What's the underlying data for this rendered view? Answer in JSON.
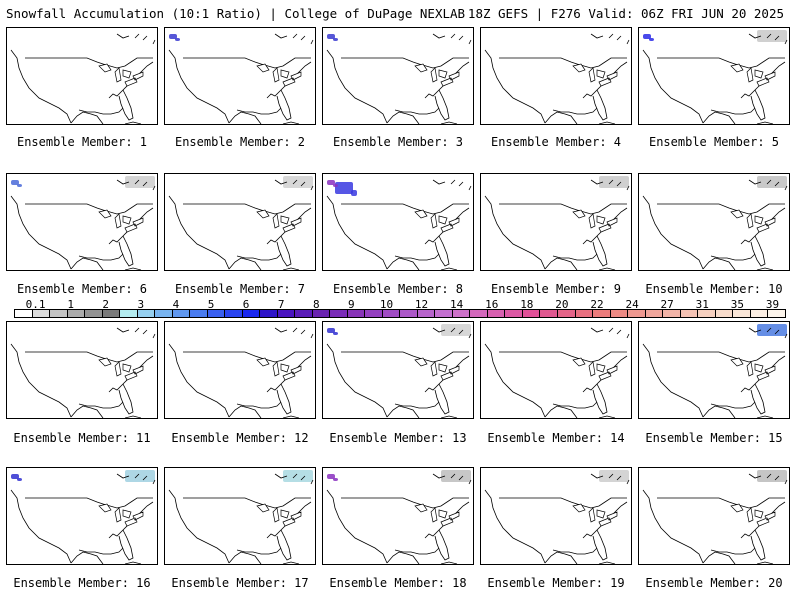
{
  "header": {
    "left": "Snowfall Accumulation (10:1 Ratio) | College of DuPage NEXLAB",
    "right": "18Z GEFS | F276 Valid: 06Z FRI JUN 20 2025"
  },
  "panels": [
    {
      "label": "Ensemble Member: 1",
      "snow": []
    },
    {
      "label": "Ensemble Member: 2",
      "snow": [
        {
          "region": "pacific-northwest",
          "color": "#3a3ad0"
        }
      ]
    },
    {
      "label": "Ensemble Member: 3",
      "snow": [
        {
          "region": "pacific-northwest",
          "color": "#3a3ad0"
        }
      ]
    },
    {
      "label": "Ensemble Member: 4",
      "snow": []
    },
    {
      "label": "Ensemble Member: 5",
      "snow": [
        {
          "region": "pacific-northwest",
          "color": "#2a2ae8"
        },
        {
          "region": "northeast-canada",
          "color": "#c8c8c8"
        }
      ]
    },
    {
      "label": "Ensemble Member: 6",
      "snow": [
        {
          "region": "pacific-northwest",
          "color": "#4a6ad8"
        },
        {
          "region": "northeast-canada",
          "color": "#cccccc"
        }
      ]
    },
    {
      "label": "Ensemble Member: 7",
      "snow": [
        {
          "region": "northeast-canada",
          "color": "#d0d0d0"
        }
      ]
    },
    {
      "label": "Ensemble Member: 8",
      "snow": [
        {
          "region": "northern-rockies",
          "color": "#3838e0"
        },
        {
          "region": "pacific-northwest",
          "color": "#8a30c0"
        }
      ]
    },
    {
      "label": "Ensemble Member: 9",
      "snow": [
        {
          "region": "northeast-canada",
          "color": "#c8c8c8"
        }
      ]
    },
    {
      "label": "Ensemble Member: 10",
      "snow": [
        {
          "region": "northeast-canada",
          "color": "#c0c0c0"
        }
      ]
    },
    {
      "label": "Ensemble Member: 11",
      "snow": []
    },
    {
      "label": "Ensemble Member: 12",
      "snow": []
    },
    {
      "label": "Ensemble Member: 13",
      "snow": [
        {
          "region": "pacific-northwest",
          "color": "#3030d0"
        },
        {
          "region": "northeast-canada",
          "color": "#d0d0d0"
        }
      ]
    },
    {
      "label": "Ensemble Member: 14",
      "snow": []
    },
    {
      "label": "Ensemble Member: 15",
      "snow": [
        {
          "region": "northeast-canada",
          "color": "#4a7ae0"
        }
      ]
    },
    {
      "label": "Ensemble Member: 16",
      "snow": [
        {
          "region": "pacific-northwest",
          "color": "#3030d0"
        },
        {
          "region": "northeast-canada",
          "color": "#a0d0e0"
        }
      ]
    },
    {
      "label": "Ensemble Member: 17",
      "snow": [
        {
          "region": "northeast-canada",
          "color": "#a8d8e0"
        }
      ]
    },
    {
      "label": "Ensemble Member: 18",
      "snow": [
        {
          "region": "pacific-northwest",
          "color": "#8a30c0"
        },
        {
          "region": "northeast-canada",
          "color": "#bdbdbd"
        }
      ]
    },
    {
      "label": "Ensemble Member: 19",
      "snow": [
        {
          "region": "northeast-canada",
          "color": "#cccccc"
        }
      ]
    },
    {
      "label": "Ensemble Member: 20",
      "snow": [
        {
          "region": "northeast-canada",
          "color": "#bbbbbb"
        }
      ]
    }
  ],
  "colorbar": {
    "labels": [
      "0.1",
      "1",
      "2",
      "3",
      "4",
      "5",
      "6",
      "7",
      "8",
      "9",
      "10",
      "12",
      "14",
      "16",
      "18",
      "20",
      "22",
      "24",
      "27",
      "31",
      "35",
      "39"
    ],
    "label_cells": [
      0,
      2,
      4,
      6,
      8,
      10,
      12,
      14,
      16,
      18,
      20,
      22,
      24,
      26,
      28,
      30,
      32,
      34,
      36,
      38,
      40,
      42
    ],
    "colors": [
      "#ffffff",
      "#dcdcdc",
      "#c4c4c4",
      "#ababab",
      "#939393",
      "#7a7a7a",
      "#b4ecf0",
      "#96d0f0",
      "#78b4f0",
      "#6098f0",
      "#4a7cf0",
      "#3a60f0",
      "#2a44f0",
      "#1a28f0",
      "#2e14c8",
      "#4a14c0",
      "#5a1cb8",
      "#6a24b0",
      "#7a2cb8",
      "#8834b8",
      "#9440c0",
      "#a04cc4",
      "#ac58c8",
      "#b864cc",
      "#c470d0",
      "#cc70c8",
      "#d468bc",
      "#d860b0",
      "#dc58a4",
      "#e05098",
      "#e05890",
      "#e46488",
      "#e87080",
      "#ec7c7c",
      "#ec8a84",
      "#ee9890",
      "#f0a69c",
      "#f2b4a8",
      "#f4c2b4",
      "#f6d0c0",
      "#f8dccc",
      "#fae6d8",
      "#fcefe4",
      "#fdf5ec"
    ]
  }
}
